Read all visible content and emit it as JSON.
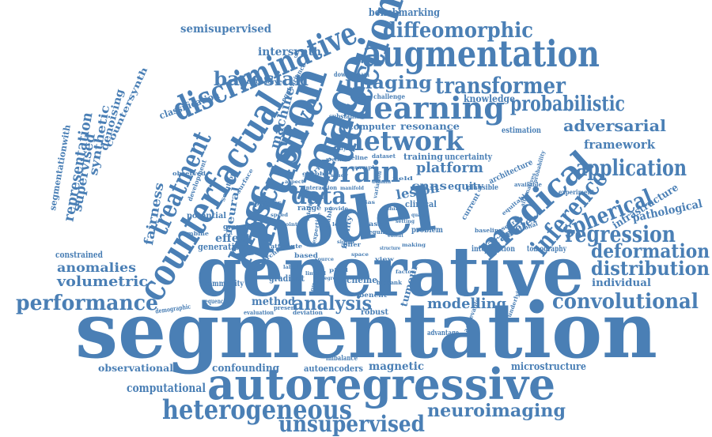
{
  "word_color": "#4a7fb5",
  "background_color": "#ffffff",
  "words": [
    "segmentation",
    "generative",
    "model",
    "autoregressive",
    "diffusion",
    "image",
    "detection",
    "counterfactual",
    "augmentation",
    "heterogeneous",
    "unsupervised",
    "brain",
    "network",
    "medical",
    "learning",
    "prescriptive",
    "discriminative",
    "diffeomorphic",
    "transformer",
    "imaging",
    "bayesian",
    "inference",
    "probabilistic",
    "convolutional",
    "regression",
    "performance",
    "analysis",
    "deformation",
    "distribution",
    "spherical",
    "application",
    "neuroimaging",
    "treatment",
    "data",
    "adversarial",
    "representation",
    "supervised",
    "synthetic",
    "volumetric",
    "anomalies",
    "modelling",
    "computational",
    "semisupervised",
    "benchmarking",
    "intersynth",
    "framework",
    "pathological",
    "infrastructure",
    "individual",
    "fairness",
    "magnetic",
    "microstructure",
    "confounding",
    "autoencoders",
    "observational",
    "platform",
    "lesion",
    "cnns",
    "parameter",
    "machine",
    "effect",
    "denoising",
    "equity",
    "resonance",
    "knowledge",
    "classification",
    "neural",
    "method",
    "tumour",
    "computer",
    "training",
    "uncertainty",
    "architecture",
    "estimation",
    "clinical",
    "generation",
    "scheme",
    "gradient",
    "community",
    "tomography",
    "intervention",
    "problem",
    "robust",
    "constrained",
    "segmentationwith",
    "countersynth",
    "imbalance",
    "advantage",
    "sequence",
    "demographic",
    "downstream",
    "challenge",
    "substantial",
    "unobserved",
    "equivariance",
    "experiment",
    "potential",
    "specific",
    "range",
    "ground",
    "development",
    "combine",
    "solution",
    "current",
    "research",
    "plausible",
    "equitable",
    "fidelity",
    "based",
    "benefit",
    "deviation",
    "evaluation",
    "present",
    "real",
    "healthy",
    "pipeline",
    "dataset",
    "task",
    "offer",
    "require",
    "variation",
    "achievable",
    "underlying",
    "alternatives",
    "available",
    "rotational",
    "probability",
    "interaction",
    "observed",
    "attribute",
    "expertise",
    "biobank",
    "competitive",
    "driven",
    "surface",
    "stable",
    "baseline",
    "hierarchical",
    "level",
    "making",
    "manifold",
    "precision",
    "fidelity",
    "extent",
    "speed",
    "point",
    "bias",
    "quality",
    "space",
    "shift",
    "pixel",
    "label",
    "source",
    "view",
    "setting",
    "study",
    "result",
    "domain",
    "structure",
    "provide",
    "sample",
    "field",
    "graph",
    "degree",
    "aspect",
    "factor",
    "signal",
    "limited"
  ]
}
